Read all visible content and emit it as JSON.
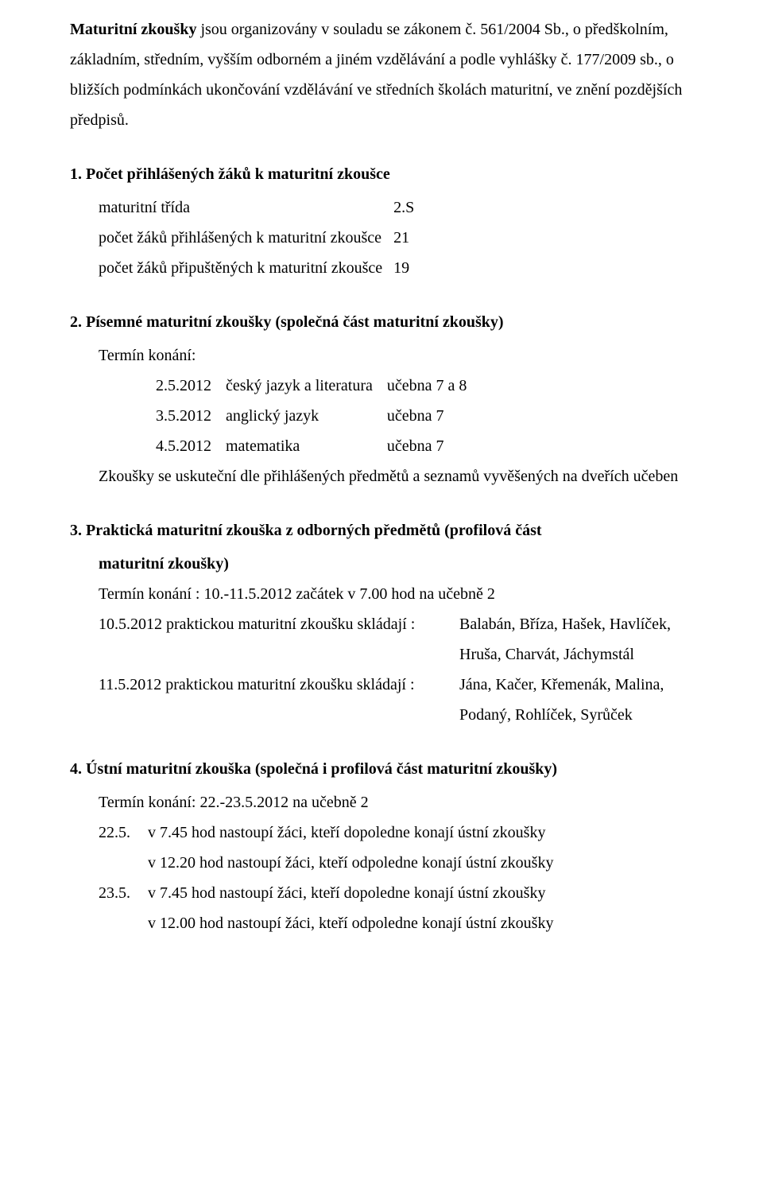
{
  "intro": {
    "p1_bold1": "Maturitní zkoušky",
    "p1_rest": " jsou organizovány v souladu se zákonem č. 561/2004 Sb., o předškolním, základním, středním, vyšším odborném a jiném vzdělávání a podle vyhlášky č. 177/2009 sb., o bližších podmínkách ukončování vzdělávání ve středních školách maturitní, ve znění pozdějších předpisů."
  },
  "s1": {
    "title": "1.  Počet přihlášených žáků k maturitní zkoušce",
    "rows": [
      {
        "label": "maturitní třída",
        "value": "2.S"
      },
      {
        "label": "počet žáků přihlášených k maturitní zkoušce",
        "value": "21"
      },
      {
        "label": "počet žáků připuštěných k maturitní zkoušce",
        "value": "19"
      }
    ]
  },
  "s2": {
    "title": "2.  Písemné maturitní zkoušky (společná část maturitní zkoušky)",
    "termin_label": "Termín konání:",
    "schedule": [
      {
        "date": "2.5.2012",
        "subject": "český jazyk a literatura",
        "room": "učebna 7 a 8"
      },
      {
        "date": "3.5.2012",
        "subject": "anglický jazyk",
        "room": "učebna 7"
      },
      {
        "date": "4.5.2012",
        "subject": "matematika",
        "room": "učebna 7"
      }
    ],
    "note": "Zkoušky se uskuteční dle přihlášených předmětů a seznamů vyvěšených na dveřích učeben"
  },
  "s3": {
    "title": "3.  Praktická maturitní zkouška z odborných předmětů (profilová část",
    "title_cont": "maturitní zkoušky)",
    "termin": "Termín konání : 10.-11.5.2012 začátek v 7.00 hod na učebně 2",
    "rows": [
      {
        "left": "10.5.2012 praktickou maturitní zkoušku skládají :",
        "right1": "Balabán, Bříza, Hašek, Havlíček,",
        "right2": "Hruša, Charvát, Jáchymstál"
      },
      {
        "left": "11.5.2012 praktickou maturitní zkoušku skládají :",
        "right1": "Jána, Kačer, Křemenák, Malina,",
        "right2": "Podaný, Rohlíček, Syrůček"
      }
    ]
  },
  "s4": {
    "title": "4.  Ústní maturitní zkouška (společná i profilová část maturitní zkoušky)",
    "termin": "Termín konání: 22.-23.5.2012 na učebně 2",
    "rows": [
      {
        "date": "22.5.",
        "line1": "v 7.45 hod nastoupí žáci, kteří dopoledne konají ústní zkoušky",
        "line2": "v 12.20 hod nastoupí žáci, kteří odpoledne konají ústní zkoušky"
      },
      {
        "date": "23.5.",
        "line1": "v 7.45 hod nastoupí žáci, kteří dopoledne konají ústní zkoušky",
        "line2": "v 12.00 hod nastoupí žáci, kteří odpoledne konají ústní zkoušky"
      }
    ]
  }
}
